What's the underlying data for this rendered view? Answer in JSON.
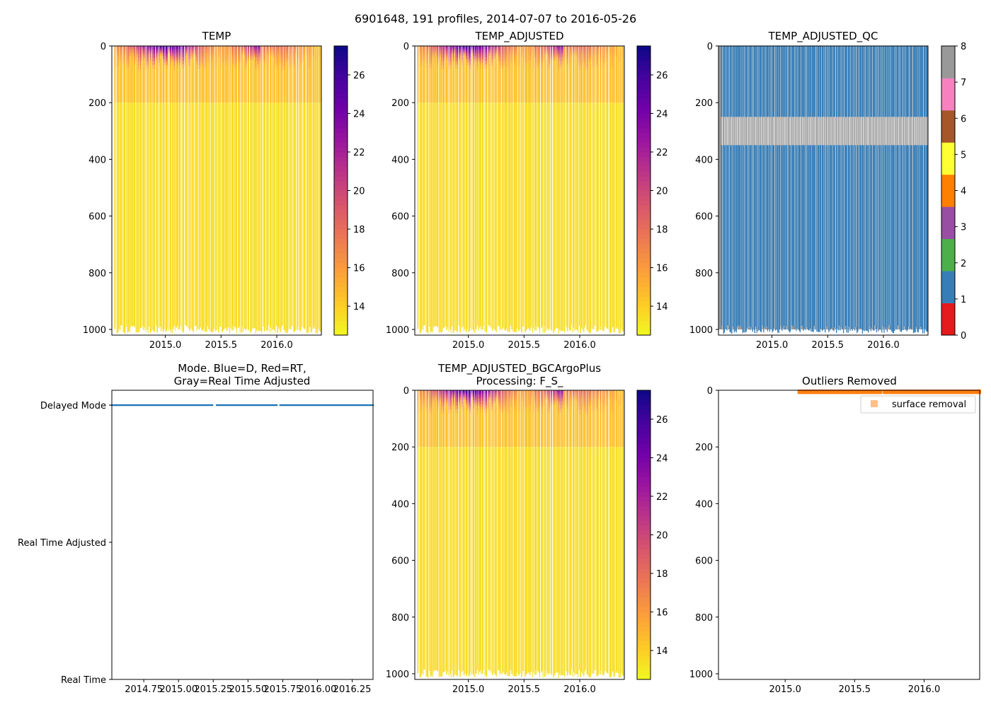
{
  "figure": {
    "suptitle": "6901648, 191 profiles, 2014-07-07 to 2016-05-26"
  },
  "colors": {
    "plasma_r": [
      "#f0f921",
      "#fdca26",
      "#fb9f3a",
      "#ed7953",
      "#d8576b",
      "#bd3786",
      "#9c179e",
      "#7201a8",
      "#46039f",
      "#0d0887"
    ],
    "qc_flags": [
      "#e41a1c",
      "#377eb8",
      "#4daf4a",
      "#984ea3",
      "#ff7f00",
      "#ffff33",
      "#a65628",
      "#f781bf",
      "#999999"
    ],
    "mode_delayed": "#1f77b4",
    "outlier": "#ff7f0e"
  },
  "chart_data": [
    {
      "type": "heatmap",
      "title": "TEMP",
      "x_range": [
        2014.52,
        2016.4
      ],
      "ylim": [
        1020,
        0
      ],
      "xticks": [
        2015.0,
        2015.5,
        2016.0
      ],
      "xtick_labels": [
        "2015.0",
        "2015.5",
        "2016.0"
      ],
      "yticks": [
        0,
        200,
        400,
        600,
        800,
        1000
      ],
      "ytick_labels": [
        "0",
        "200",
        "400",
        "600",
        "800",
        "1000"
      ],
      "colorbar": {
        "range": [
          12.5,
          27.5
        ],
        "ticks": [
          14,
          16,
          18,
          20,
          22,
          24,
          26
        ],
        "tick_labels": [
          "14",
          "16",
          "18",
          "20",
          "22",
          "24",
          "26"
        ],
        "cmap": "plasma_r"
      },
      "profile_count": 191,
      "deep_temperature": 13.5,
      "surface_temperature_range": [
        15,
        27
      ],
      "mixed_layer_depth_range": [
        20,
        90
      ]
    },
    {
      "type": "heatmap",
      "title": "TEMP_ADJUSTED",
      "x_range": [
        2014.52,
        2016.4
      ],
      "ylim": [
        1020,
        0
      ],
      "xticks": [
        2015.0,
        2015.5,
        2016.0
      ],
      "xtick_labels": [
        "2015.0",
        "2015.5",
        "2016.0"
      ],
      "yticks": [
        0,
        200,
        400,
        600,
        800,
        1000
      ],
      "ytick_labels": [
        "0",
        "200",
        "400",
        "600",
        "800",
        "1000"
      ],
      "colorbar": {
        "range": [
          12.5,
          27.5
        ],
        "ticks": [
          14,
          16,
          18,
          20,
          22,
          24,
          26
        ],
        "tick_labels": [
          "14",
          "16",
          "18",
          "20",
          "22",
          "24",
          "26"
        ],
        "cmap": "plasma_r"
      }
    },
    {
      "type": "heatmap",
      "title": "TEMP_ADJUSTED_QC",
      "x_range": [
        2014.52,
        2016.4
      ],
      "ylim": [
        1020,
        0
      ],
      "xticks": [
        2015.0,
        2015.5,
        2016.0
      ],
      "xtick_labels": [
        "2015.0",
        "2015.5",
        "2016.0"
      ],
      "yticks": [
        0,
        200,
        400,
        600,
        800,
        1000
      ],
      "ytick_labels": [
        "0",
        "200",
        "400",
        "600",
        "800",
        "1000"
      ],
      "colorbar": {
        "range": [
          0,
          8
        ],
        "ticks": [
          0,
          1,
          2,
          3,
          4,
          5,
          6,
          7,
          8
        ],
        "tick_labels": [
          "0",
          "1",
          "2",
          "3",
          "4",
          "5",
          "6",
          "7",
          "8"
        ],
        "cmap": "qc_flags"
      },
      "flag_values_present": [
        1,
        8
      ],
      "flag8_band_depth": [
        250,
        350
      ]
    },
    {
      "type": "scatter",
      "title_lines": [
        "Mode. Blue=D, Red=RT,",
        "Gray=Real Time Adjusted"
      ],
      "x_range": [
        2014.52,
        2016.4
      ],
      "xticks": [
        2014.75,
        2015.0,
        2015.25,
        2015.5,
        2015.75,
        2016.0,
        2016.25
      ],
      "xtick_labels": [
        "2014.75",
        "2015.00",
        "2015.25",
        "2015.50",
        "2015.75",
        "2016.00",
        "2016.25"
      ],
      "y_categories": [
        "Delayed Mode",
        "Real Time Adjusted",
        "Real Time"
      ],
      "series": [
        {
          "name": "Delayed Mode",
          "category": "Delayed Mode",
          "x_start": 2014.52,
          "x_end": 2016.4,
          "gaps": [
            [
              2015.25,
              2015.27
            ],
            [
              2015.71,
              2015.73
            ]
          ]
        }
      ]
    },
    {
      "type": "heatmap",
      "title_lines": [
        "TEMP_ADJUSTED_BGCArgoPlus",
        "Processing: F_S_"
      ],
      "x_range": [
        2014.52,
        2016.4
      ],
      "ylim": [
        1020,
        0
      ],
      "xticks": [
        2015.0,
        2015.5,
        2016.0
      ],
      "xtick_labels": [
        "2015.0",
        "2015.5",
        "2016.0"
      ],
      "yticks": [
        0,
        200,
        400,
        600,
        800,
        1000
      ],
      "ytick_labels": [
        "0",
        "200",
        "400",
        "600",
        "800",
        "1000"
      ],
      "colorbar": {
        "range": [
          12.5,
          27.5
        ],
        "ticks": [
          14,
          16,
          18,
          20,
          22,
          24,
          26
        ],
        "tick_labels": [
          "14",
          "16",
          "18",
          "20",
          "22",
          "24",
          "26"
        ],
        "cmap": "plasma_r"
      }
    },
    {
      "type": "scatter",
      "title": "Outliers Removed",
      "x_range": [
        2014.52,
        2016.4
      ],
      "ylim": [
        1020,
        0
      ],
      "xticks": [
        2015.0,
        2015.5,
        2016.0
      ],
      "xtick_labels": [
        "2015.0",
        "2015.5",
        "2016.0"
      ],
      "yticks": [
        0,
        200,
        400,
        600,
        800,
        1000
      ],
      "ytick_labels": [
        "0",
        "200",
        "400",
        "600",
        "800",
        "1000"
      ],
      "legend": {
        "label": "surface removal",
        "position": "upper right"
      },
      "series": [
        {
          "name": "surface removal",
          "x_start": 2015.1,
          "x_end": 2016.4,
          "depth_range": [
            0,
            8
          ],
          "gaps": [
            [
              2015.69,
              2015.71
            ]
          ]
        }
      ]
    }
  ]
}
